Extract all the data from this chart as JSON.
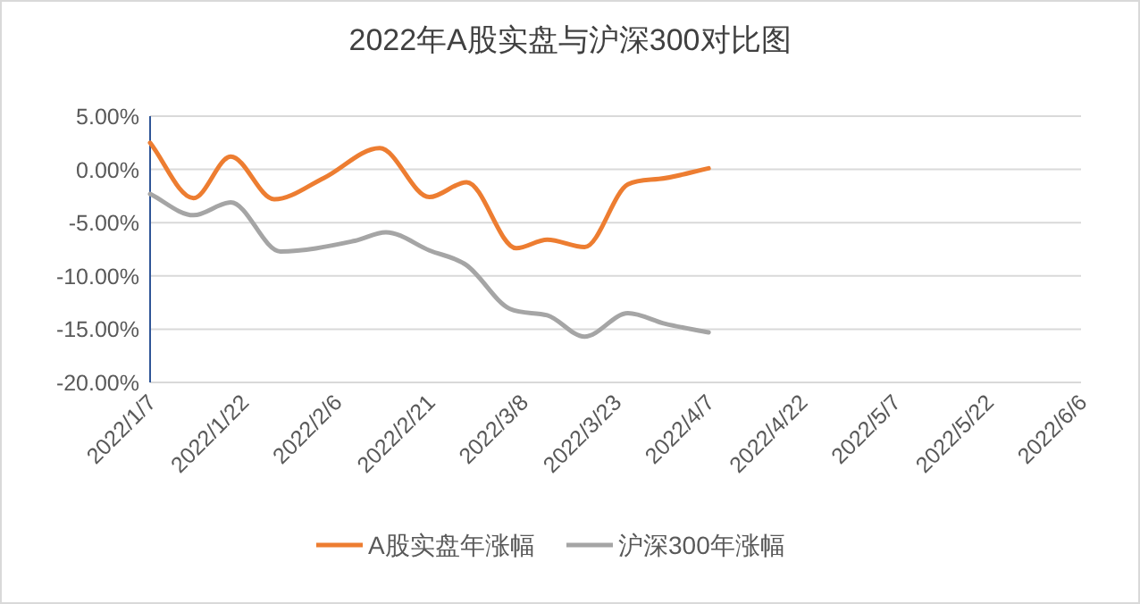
{
  "chart_data": {
    "type": "line",
    "title": "2022年A股实盘与沪深300对比图",
    "xlim": [
      "2022-01-07",
      "2022-06-06"
    ],
    "xticks": [
      {
        "value": "2022-01-07",
        "label": "2022/1/7"
      },
      {
        "value": "2022-01-22",
        "label": "2022/1/22"
      },
      {
        "value": "2022-02-06",
        "label": "2022/2/6"
      },
      {
        "value": "2022-02-21",
        "label": "2022/2/21"
      },
      {
        "value": "2022-03-08",
        "label": "2022/3/8"
      },
      {
        "value": "2022-03-23",
        "label": "2022/3/23"
      },
      {
        "value": "2022-04-07",
        "label": "2022/4/7"
      },
      {
        "value": "2022-04-22",
        "label": "2022/4/22"
      },
      {
        "value": "2022-05-07",
        "label": "2022/5/7"
      },
      {
        "value": "2022-05-22",
        "label": "2022/5/22"
      },
      {
        "value": "2022-06-06",
        "label": "2022/6/6"
      }
    ],
    "ylim": [
      -20,
      5
    ],
    "yticks": [
      {
        "value": -20,
        "label": "-20.00%"
      },
      {
        "value": -15,
        "label": "-15.00%"
      },
      {
        "value": -10,
        "label": "-10.00%"
      },
      {
        "value": -5,
        "label": "-5.00%"
      },
      {
        "value": 0,
        "label": "0.00%"
      },
      {
        "value": 5,
        "label": "5.00%"
      }
    ],
    "grid": "y",
    "legend": "bottom",
    "marker": "none",
    "line_style": "solid",
    "series": [
      {
        "name": "A股实盘年涨幅",
        "color": "#ed7d31",
        "x": [
          "2022-01-07",
          "2022-01-14",
          "2022-01-20",
          "2022-01-27",
          "2022-02-04",
          "2022-02-13",
          "2022-02-21",
          "2022-02-27",
          "2022-03-07",
          "2022-03-12",
          "2022-03-18",
          "2022-03-25",
          "2022-03-30",
          "2022-04-07"
        ],
        "values": [
          2.5,
          -2.7,
          1.2,
          -2.8,
          -0.8,
          2.0,
          -2.6,
          -1.2,
          -7.4,
          -6.6,
          -7.3,
          -1.4,
          -0.9,
          0.1
        ]
      },
      {
        "name": "沪深300年涨幅",
        "color": "#a5a5a5",
        "x": [
          "2022-01-07",
          "2022-01-14",
          "2022-01-20",
          "2022-01-28",
          "2022-02-09",
          "2022-02-14",
          "2022-02-21",
          "2022-02-27",
          "2022-03-06",
          "2022-03-12",
          "2022-03-18",
          "2022-03-25",
          "2022-03-31",
          "2022-04-07"
        ],
        "values": [
          -2.3,
          -4.3,
          -3.1,
          -7.7,
          -6.7,
          -5.9,
          -7.6,
          -9.0,
          -13.1,
          -13.7,
          -15.7,
          -13.5,
          -14.5,
          -15.3
        ]
      }
    ]
  }
}
